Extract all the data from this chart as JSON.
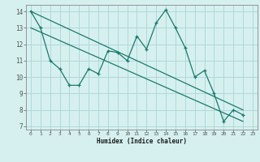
{
  "xlabel": "Humidex (Indice chaleur)",
  "ylabel": "",
  "bg_color": "#d6f0f0",
  "grid_color": "#b0d8d8",
  "line_color": "#1a7a6a",
  "xlim": [
    -0.5,
    23.5
  ],
  "ylim": [
    6.8,
    14.4
  ],
  "xticks": [
    0,
    1,
    2,
    3,
    4,
    5,
    6,
    7,
    8,
    9,
    10,
    11,
    12,
    13,
    14,
    15,
    16,
    17,
    18,
    19,
    20,
    21,
    22,
    23
  ],
  "yticks": [
    7,
    8,
    9,
    10,
    11,
    12,
    13,
    14
  ],
  "line1_x": [
    0,
    1,
    2,
    3,
    4,
    5,
    6,
    7,
    8,
    9,
    10,
    11,
    12,
    13,
    14,
    15,
    16,
    17,
    18,
    19,
    20,
    21,
    22
  ],
  "line1_y": [
    14.0,
    13.0,
    11.0,
    10.5,
    9.5,
    9.5,
    10.5,
    10.2,
    11.6,
    11.5,
    11.0,
    12.5,
    11.7,
    13.3,
    14.1,
    13.0,
    11.8,
    10.0,
    10.4,
    9.0,
    7.3,
    8.0,
    7.7
  ],
  "line2_x": [
    0,
    22
  ],
  "line2_y": [
    14.0,
    8.0
  ],
  "line3_x": [
    0,
    22
  ],
  "line3_y": [
    13.0,
    7.3
  ],
  "marker": "+"
}
